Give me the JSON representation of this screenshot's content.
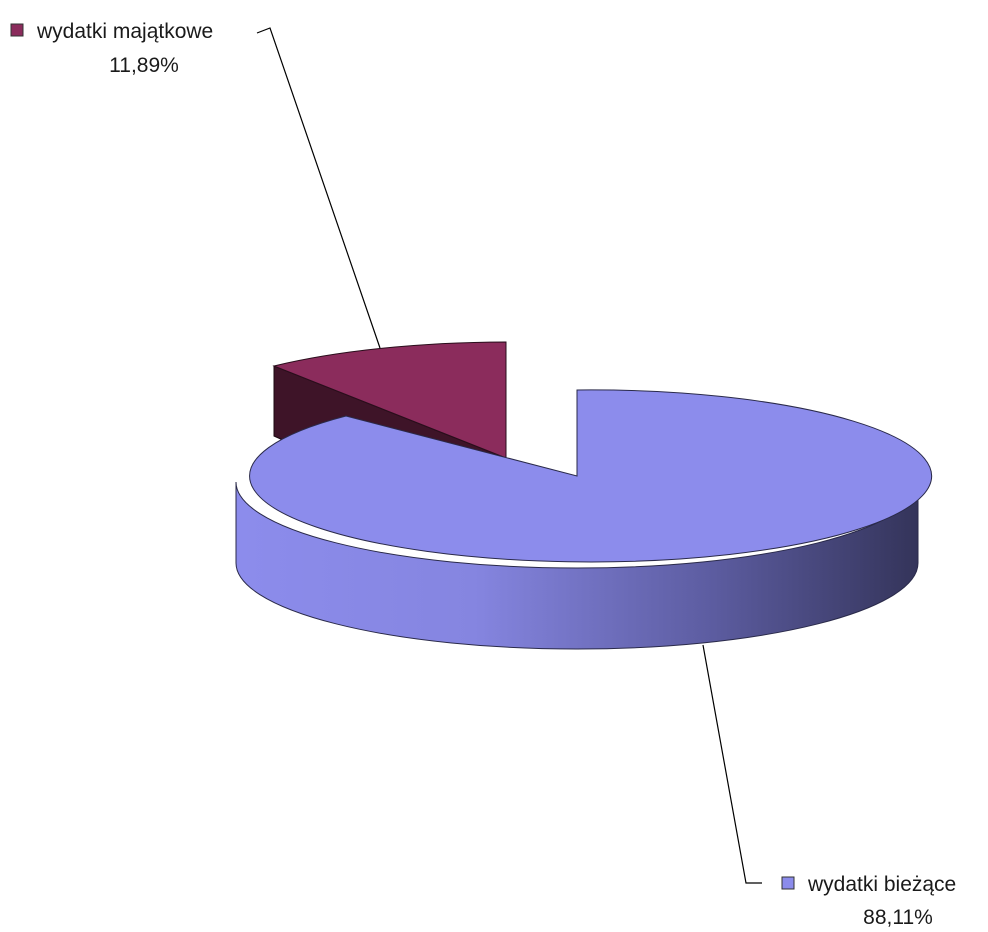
{
  "chart_data": {
    "type": "pie",
    "title": "",
    "style": "3d-exploded",
    "legend_placement": "callout-labels",
    "slices": [
      {
        "label": "wydatki majątkowe",
        "value": 11.89,
        "value_label": "11,89%",
        "color": "#8b2c5c",
        "side_color": "#3e1428"
      },
      {
        "label": "wydatki bieżące",
        "value": 88.11,
        "value_label": "88,11%",
        "color": "#8c8cec",
        "side_color": "#3a3a6a"
      }
    ]
  }
}
